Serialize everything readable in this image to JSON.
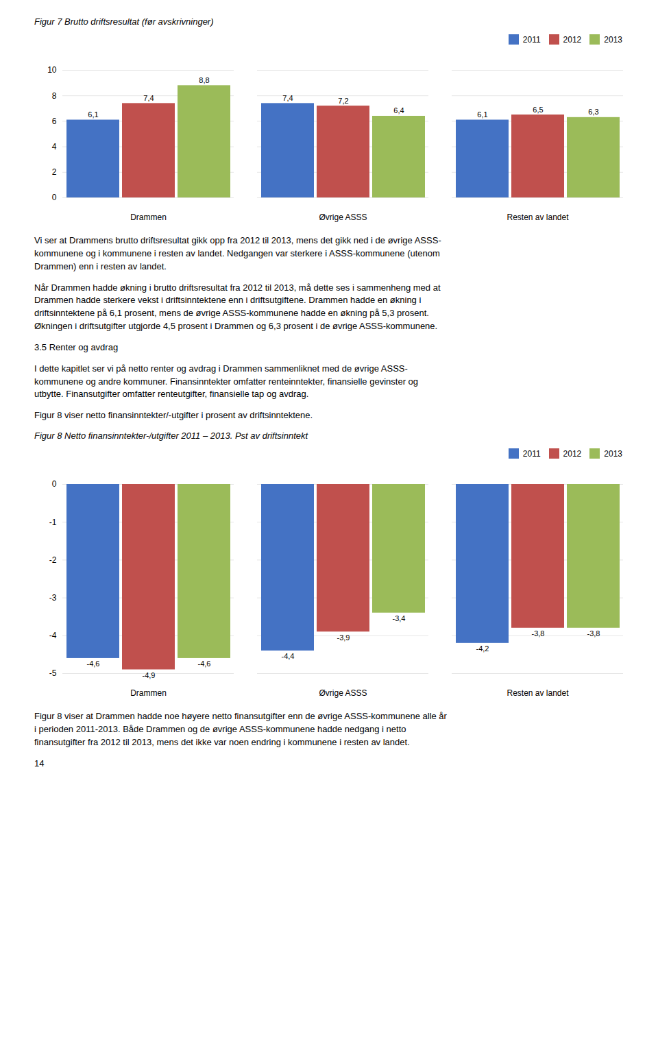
{
  "chart_data": [
    {
      "type": "bar",
      "title": "Figur 7 Brutto driftsresultat (før avskrivninger)",
      "categories": [
        "Drammen",
        "Øvrige ASSS",
        "Resten av landet"
      ],
      "series": [
        {
          "name": "2011",
          "color": "#4472C4",
          "values": [
            6.1,
            7.4,
            6.1
          ],
          "value_labels": [
            "6,1",
            "7,4",
            "6,1"
          ]
        },
        {
          "name": "2012",
          "color": "#C0504D",
          "values": [
            7.4,
            7.2,
            6.5
          ],
          "value_labels": [
            "7,4",
            "7,2",
            "6,5"
          ]
        },
        {
          "name": "2013",
          "color": "#9BBB59",
          "values": [
            8.8,
            6.4,
            6.3
          ],
          "value_labels": [
            "8,8",
            "6,4",
            "6,3"
          ]
        }
      ],
      "ylim": [
        0,
        10
      ],
      "yticks": [
        0,
        2,
        4,
        6,
        8,
        10
      ],
      "grid": true,
      "legend": "upper right",
      "data_labels": true,
      "annotations": [
        "Vi ser at Drammens brutto driftsresultat gikk opp fra 2012 til 2013, mens det gikk ned i de øvrige ASSS-\nkommunene og i kommunene i resten av landet. Nedgangen var sterkere i ASSS-kommunene (utenom\nDrammen) enn i resten av landet.",
        "Når Drammen hadde økning i brutto driftsresultat fra 2012 til 2013, må dette ses i sammenheng med at\nDrammen hadde sterkere vekst i driftsinntektene enn i driftsutgiftene. Drammen hadde en økning i\ndriftsinntektene på 6,1 prosent, mens de øvrige ASSS-kommunene hadde en økning på 5,3 prosent.\nØkningen i driftsutgifter utgjorde 4,5 prosent i Drammen og 6,3 prosent i de øvrige ASSS-kommunene.",
        "3.5  Renter og avdrag",
        "I dette kapitlet ser vi på netto renter og avdrag i Drammen sammenliknet med de øvrige ASSS-\nkommunene og andre kommuner. Finansinntekter omfatter renteinntekter, finansielle gevinster og\nutbytte. Finansutgifter omfatter renteutgifter, finansielle tap og avdrag.",
        "Figur 8 viser netto finansinntekter/-utgifter i prosent av driftsinntektene."
      ]
    },
    {
      "type": "bar",
      "title": "Figur 8 Netto finansinntekter-/utgifter 2011 – 2013. Pst av driftsinntekt",
      "categories": [
        "Drammen",
        "Øvrige ASSS",
        "Resten av landet"
      ],
      "series": [
        {
          "name": "2011",
          "color": "#4472C4",
          "values": [
            -4.6,
            -4.4,
            -4.2
          ],
          "value_labels": [
            "-4,6",
            "-4,4",
            "-4,2"
          ]
        },
        {
          "name": "2012",
          "color": "#C0504D",
          "values": [
            -4.9,
            -3.9,
            -3.8
          ],
          "value_labels": [
            "-4,9",
            "-3,9",
            "-3,8"
          ]
        },
        {
          "name": "2013",
          "color": "#9BBB59",
          "values": [
            -4.6,
            -3.4,
            -3.8
          ],
          "value_labels": [
            "-4,6",
            "-3,4",
            "-3,8"
          ]
        }
      ],
      "ylim": [
        -5,
        0
      ],
      "yticks": [
        -5,
        -4,
        -3,
        -2,
        -1,
        0
      ],
      "grid": true,
      "legend": "upper right",
      "data_labels": true,
      "annotations": [
        "Figur 8 viser at Drammen hadde noe høyere netto finansutgifter enn de øvrige ASSS-kommunene alle år\ni perioden 2011-2013. Både Drammen og de øvrige ASSS-kommunene hadde nedgang i netto\nfinansutgifter fra 2012 til 2013, mens det ikke var noen endring i kommunene i resten av landet.",
        "14"
      ]
    }
  ]
}
